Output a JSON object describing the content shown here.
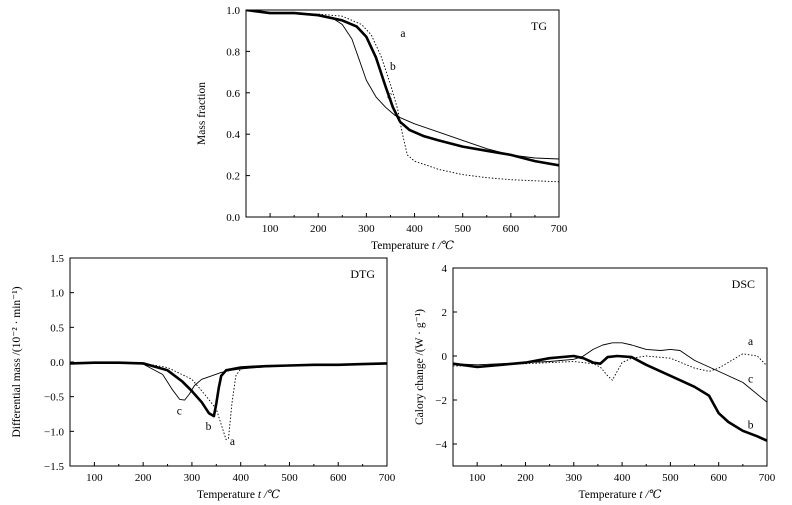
{
  "chart_data": [
    {
      "id": "tg",
      "type": "line",
      "panel_label": "TG",
      "xlabel": "Temperature",
      "xlabel_symbol": "t /℃",
      "ylabel": "Mass fraction",
      "xlim": [
        50,
        700
      ],
      "ylim": [
        0,
        1.0
      ],
      "xticks": [
        100,
        200,
        300,
        400,
        500,
        600,
        700
      ],
      "yticks": [
        0.0,
        0.2,
        0.4,
        0.6,
        0.8,
        1.0
      ],
      "ytick_labels": [
        "0.0",
        "0.2",
        "0.4",
        "0.6",
        "0.8",
        "1.0"
      ],
      "series": [
        {
          "name": "a",
          "style": "dotted",
          "x": [
            50,
            100,
            150,
            200,
            250,
            290,
            310,
            330,
            350,
            365,
            375,
            385,
            400,
            450,
            500,
            550,
            600,
            650,
            700
          ],
          "y": [
            1.0,
            0.985,
            0.985,
            0.98,
            0.97,
            0.93,
            0.88,
            0.78,
            0.64,
            0.52,
            0.4,
            0.3,
            0.27,
            0.23,
            0.205,
            0.19,
            0.18,
            0.175,
            0.17
          ]
        },
        {
          "name": "b",
          "style": "bold",
          "x": [
            50,
            100,
            150,
            200,
            250,
            280,
            300,
            320,
            340,
            355,
            370,
            390,
            420,
            450,
            500,
            550,
            600,
            650,
            700
          ],
          "y": [
            1.0,
            0.985,
            0.985,
            0.975,
            0.95,
            0.92,
            0.87,
            0.77,
            0.63,
            0.53,
            0.46,
            0.42,
            0.39,
            0.37,
            0.34,
            0.32,
            0.3,
            0.27,
            0.25
          ]
        },
        {
          "name": "c",
          "style": "thin",
          "x": [
            50,
            100,
            150,
            200,
            230,
            250,
            270,
            285,
            300,
            320,
            340,
            360,
            380,
            400,
            450,
            500,
            550,
            600,
            650,
            700
          ],
          "y": [
            1.0,
            0.985,
            0.985,
            0.975,
            0.96,
            0.93,
            0.86,
            0.76,
            0.66,
            0.58,
            0.53,
            0.49,
            0.47,
            0.45,
            0.41,
            0.37,
            0.33,
            0.3,
            0.285,
            0.28
          ]
        }
      ],
      "annotations": [
        {
          "text": "a",
          "x": 376,
          "y": 0.87
        },
        {
          "text": "b",
          "x": 355,
          "y": 0.71
        },
        {
          "text": "c",
          "x": 348,
          "y": 0.57
        }
      ]
    },
    {
      "id": "dtg",
      "type": "line",
      "panel_label": "DTG",
      "xlabel": "Temperature",
      "xlabel_symbol": "t /℃",
      "ylabel": "Differential mass /(10⁻² · min⁻¹)",
      "xlim": [
        50,
        700
      ],
      "ylim": [
        -1.5,
        1.5
      ],
      "xticks": [
        100,
        200,
        300,
        400,
        500,
        600,
        700
      ],
      "yticks": [
        -1.5,
        -1.0,
        -0.5,
        0.0,
        0.5,
        1.0,
        1.5
      ],
      "ytick_labels": [
        "−1.5",
        "−1.0",
        "−0.5",
        "0.0",
        "0.5",
        "1.0",
        "1.5"
      ],
      "series": [
        {
          "name": "a",
          "style": "dotted",
          "x": [
            50,
            100,
            150,
            200,
            250,
            300,
            330,
            350,
            360,
            370,
            375,
            382,
            390,
            400,
            450,
            500,
            550,
            600,
            650,
            700
          ],
          "y": [
            -0.02,
            -0.01,
            -0.01,
            -0.02,
            -0.08,
            -0.25,
            -0.5,
            -0.68,
            -0.9,
            -1.12,
            -1.1,
            -0.6,
            -0.2,
            -0.1,
            -0.06,
            -0.04,
            -0.04,
            -0.03,
            -0.03,
            -0.02
          ]
        },
        {
          "name": "b",
          "style": "bold",
          "x": [
            50,
            100,
            150,
            200,
            250,
            280,
            300,
            320,
            335,
            345,
            350,
            355,
            360,
            370,
            400,
            450,
            500,
            550,
            600,
            650,
            700
          ],
          "y": [
            -0.02,
            -0.01,
            -0.01,
            -0.02,
            -0.12,
            -0.28,
            -0.42,
            -0.58,
            -0.74,
            -0.78,
            -0.6,
            -0.38,
            -0.2,
            -0.12,
            -0.08,
            -0.06,
            -0.05,
            -0.04,
            -0.04,
            -0.03,
            -0.02
          ]
        },
        {
          "name": "c",
          "style": "thin",
          "x": [
            50,
            100,
            150,
            200,
            240,
            260,
            275,
            285,
            295,
            305,
            320,
            340,
            360,
            380,
            400,
            450,
            500,
            550,
            600,
            650,
            700
          ],
          "y": [
            -0.02,
            -0.01,
            -0.01,
            -0.03,
            -0.18,
            -0.4,
            -0.54,
            -0.55,
            -0.46,
            -0.34,
            -0.25,
            -0.2,
            -0.15,
            -0.12,
            -0.1,
            -0.07,
            -0.05,
            -0.04,
            -0.03,
            -0.03,
            -0.02
          ]
        }
      ],
      "annotations": [
        {
          "text": "a",
          "x": 383,
          "y": -1.2
        },
        {
          "text": "b",
          "x": 334,
          "y": -0.98
        },
        {
          "text": "c",
          "x": 274,
          "y": -0.76
        }
      ]
    },
    {
      "id": "dsc",
      "type": "line",
      "panel_label": "DSC",
      "xlabel": "Temperature",
      "xlabel_symbol": "t /℃",
      "ylabel": "Calory change /(W · g⁻¹)",
      "xlim": [
        50,
        700
      ],
      "ylim": [
        -5,
        4
      ],
      "xticks": [
        100,
        200,
        300,
        400,
        500,
        600,
        700
      ],
      "yticks": [
        -4,
        -2,
        0,
        2,
        4
      ],
      "ytick_labels": [
        "−4",
        "−2",
        "0",
        "2",
        "4"
      ],
      "series": [
        {
          "name": "a",
          "style": "dotted",
          "x": [
            50,
            100,
            150,
            200,
            250,
            300,
            320,
            340,
            355,
            370,
            380,
            390,
            400,
            420,
            450,
            500,
            550,
            580,
            600,
            650,
            680,
            700
          ],
          "y": [
            -0.45,
            -0.45,
            -0.4,
            -0.35,
            -0.3,
            -0.25,
            -0.3,
            -0.35,
            -0.5,
            -0.9,
            -1.1,
            -0.7,
            -0.3,
            -0.1,
            0.0,
            -0.1,
            -0.55,
            -0.7,
            -0.55,
            0.1,
            0.0,
            -0.45
          ]
        },
        {
          "name": "b",
          "style": "bold",
          "x": [
            50,
            100,
            150,
            200,
            250,
            300,
            320,
            340,
            355,
            370,
            390,
            420,
            450,
            500,
            550,
            580,
            600,
            620,
            650,
            680,
            700
          ],
          "y": [
            -0.35,
            -0.5,
            -0.4,
            -0.3,
            -0.1,
            0.0,
            -0.1,
            -0.3,
            -0.35,
            -0.05,
            0.0,
            -0.05,
            -0.4,
            -0.9,
            -1.4,
            -1.8,
            -2.6,
            -3.0,
            -3.4,
            -3.65,
            -3.85
          ]
        },
        {
          "name": "c",
          "style": "thin",
          "x": [
            50,
            100,
            150,
            200,
            250,
            300,
            320,
            340,
            360,
            380,
            400,
            420,
            450,
            480,
            500,
            520,
            550,
            600,
            650,
            700
          ],
          "y": [
            -0.35,
            -0.4,
            -0.35,
            -0.3,
            -0.25,
            -0.15,
            0.0,
            0.3,
            0.5,
            0.6,
            0.6,
            0.5,
            0.3,
            0.25,
            0.3,
            0.25,
            -0.2,
            -0.7,
            -1.2,
            -2.1
          ]
        }
      ],
      "annotations": [
        {
          "text": "a",
          "x": 666,
          "y": 0.5
        },
        {
          "text": "c",
          "x": 666,
          "y": -1.2
        },
        {
          "text": "b",
          "x": 666,
          "y": -3.3
        }
      ]
    }
  ]
}
